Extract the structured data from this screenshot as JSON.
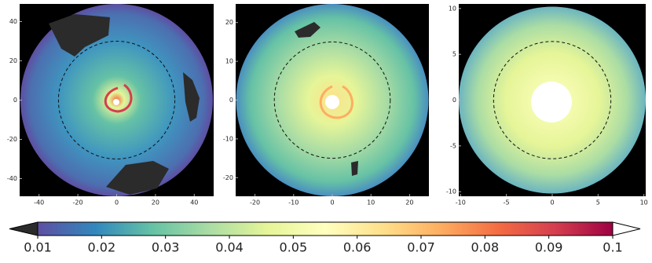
{
  "chart_data": [
    {
      "type": "image",
      "xlim": [
        -50,
        50
      ],
      "ylim": [
        -49,
        49
      ],
      "xticks": [
        -40,
        -20,
        0,
        20,
        40
      ],
      "yticks": [
        40,
        20,
        0,
        -20,
        -40
      ],
      "circle_radius": 30
    },
    {
      "type": "image",
      "xlim": [
        -25,
        25
      ],
      "ylim": [
        -24.8,
        24.8
      ],
      "xticks": [
        -20,
        -10,
        0,
        10,
        20
      ],
      "yticks": [
        20,
        10,
        0,
        -10,
        -20
      ],
      "circle_radius": 15
    },
    {
      "type": "image",
      "xlim": [
        -10.2,
        10.2
      ],
      "ylim": [
        -10.5,
        10.5
      ],
      "xticks": [
        -10,
        -5,
        0,
        5,
        10
      ],
      "yticks": [
        10,
        5,
        0,
        -5,
        -10
      ],
      "circle_radius": 6.4
    },
    {
      "type": "colorbar",
      "xlim": [
        0.01,
        0.1
      ],
      "xticks": [
        0.01,
        0.02,
        0.03,
        0.04,
        0.05,
        0.06,
        0.07,
        0.08,
        0.09,
        0.1
      ],
      "colormap": [
        "#5e4fa2",
        "#3288bd",
        "#66c2a5",
        "#abdda4",
        "#e6f598",
        "#ffffbf",
        "#fee08b",
        "#fdae61",
        "#f46d43",
        "#d53e4f",
        "#9e0142"
      ],
      "under_color": "#2b2b2b",
      "over_color": "#ffffff"
    }
  ]
}
